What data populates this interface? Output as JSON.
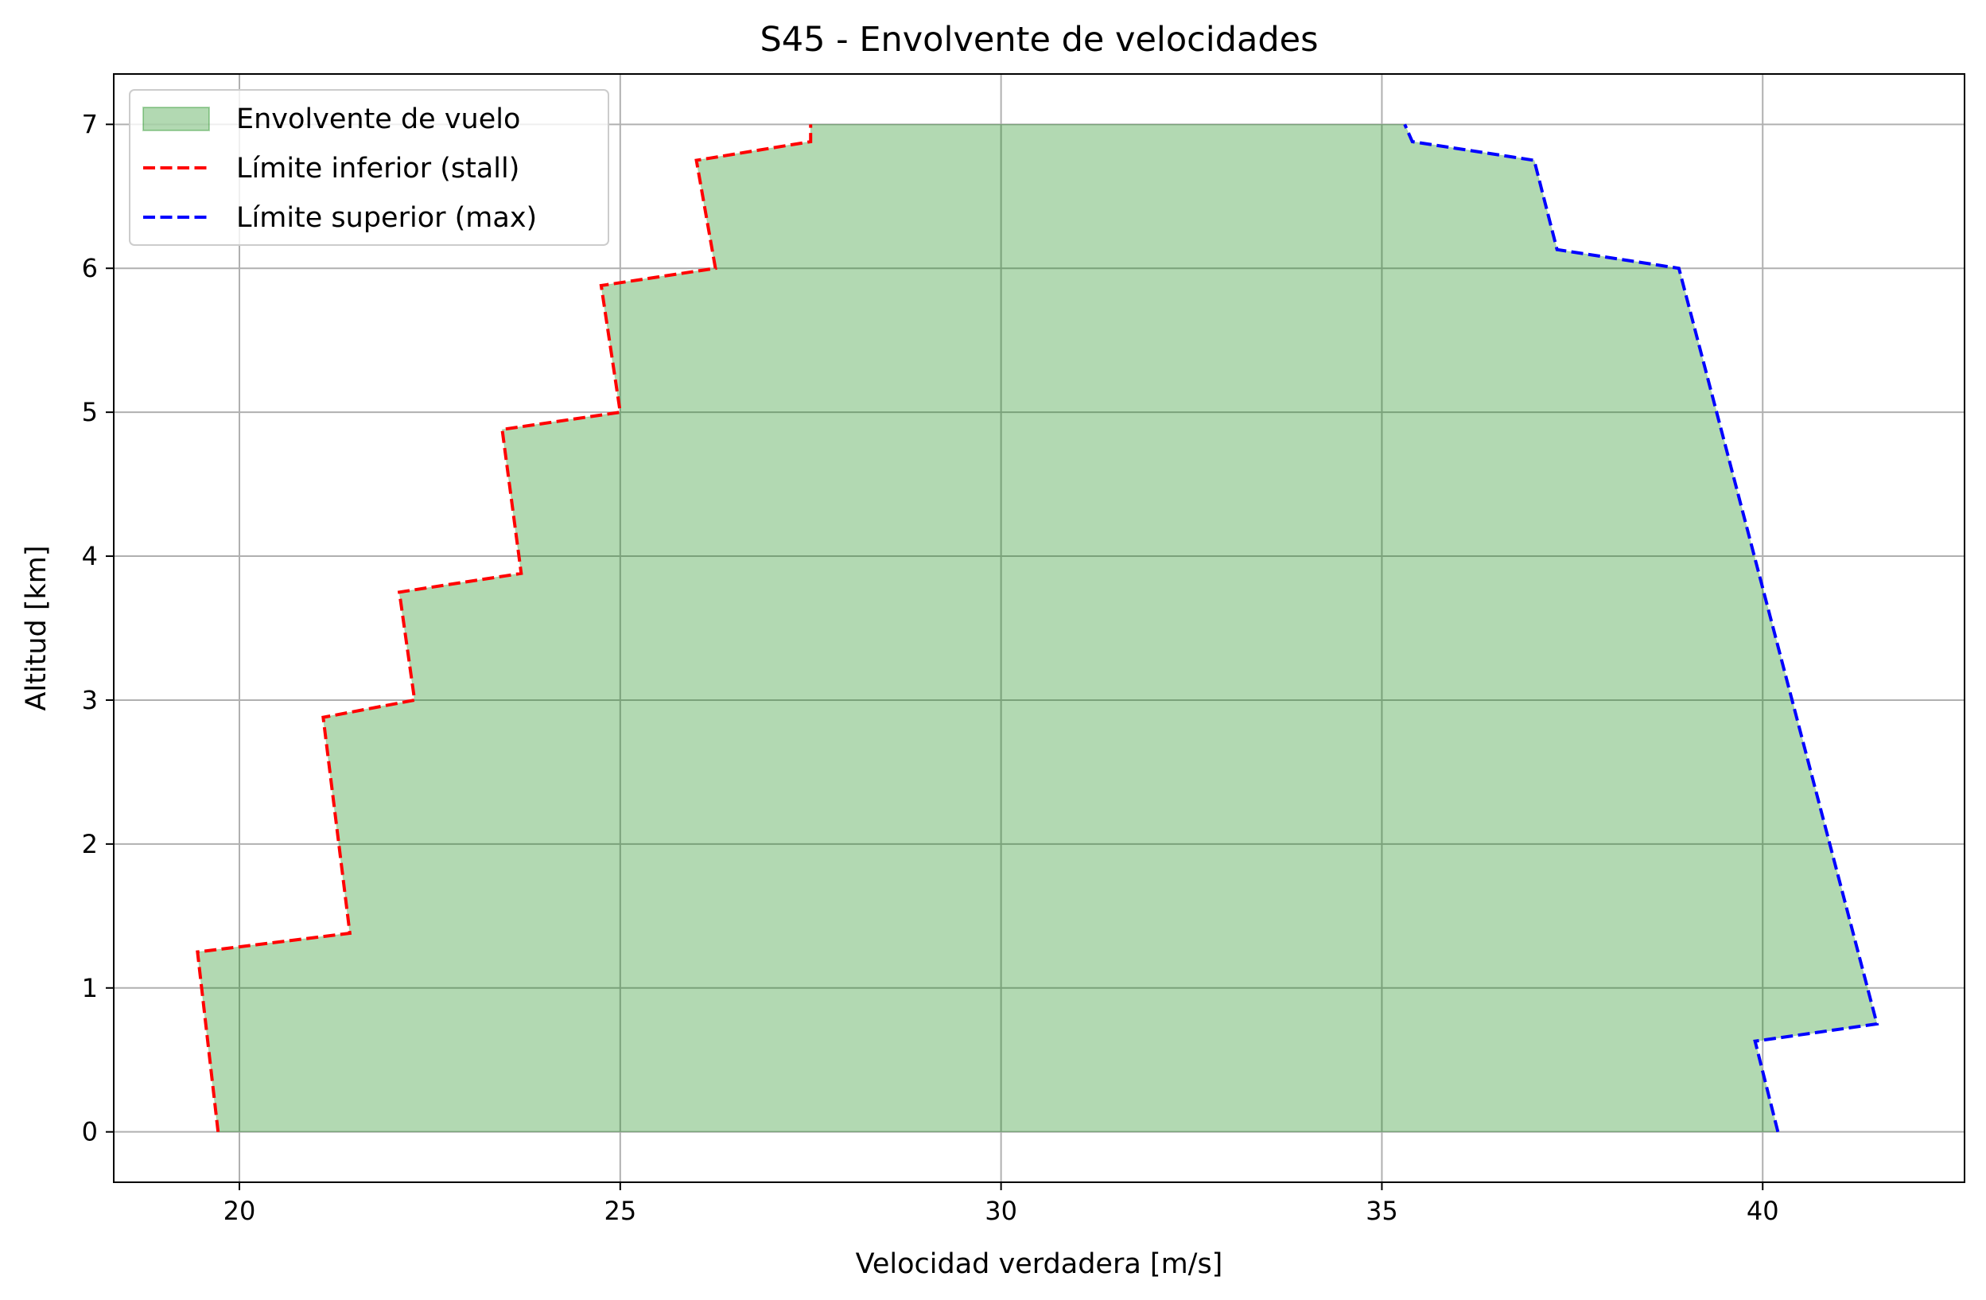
{
  "chart_data": {
    "type": "area",
    "title": "S45 - Envolvente de velocidades",
    "xlabel": "Velocidad verdadera [m/s]",
    "ylabel": "Altitud [km]",
    "xlim": [
      18.35,
      42.65
    ],
    "ylim": [
      -0.35,
      7.35
    ],
    "xticks": [
      20,
      25,
      30,
      35,
      40
    ],
    "yticks": [
      0,
      1,
      2,
      3,
      4,
      5,
      6,
      7
    ],
    "grid": true,
    "legend_position": "top-left",
    "legend": [
      {
        "label": "Envolvente de vuelo",
        "kind": "patch"
      },
      {
        "label": "Límite inferior (stall)",
        "kind": "dashed-line"
      },
      {
        "label": "Límite superior (max)",
        "kind": "dashed-line"
      }
    ],
    "series": [
      {
        "name": "Límite inferior (stall)",
        "color": "#ff0000",
        "style": "dashed",
        "points": [
          [
            19.72,
            0.0
          ],
          [
            19.45,
            1.25
          ],
          [
            21.45,
            1.38
          ],
          [
            21.1,
            2.88
          ],
          [
            22.3,
            3.0
          ],
          [
            22.1,
            3.75
          ],
          [
            23.7,
            3.88
          ],
          [
            23.45,
            4.88
          ],
          [
            25.0,
            5.0
          ],
          [
            24.75,
            5.88
          ],
          [
            26.25,
            6.0
          ],
          [
            26.0,
            6.75
          ],
          [
            27.5,
            6.88
          ],
          [
            27.5,
            7.0
          ]
        ]
      },
      {
        "name": "Límite superior (max)",
        "color": "#0000ff",
        "style": "dashed",
        "points": [
          [
            40.2,
            0.0
          ],
          [
            39.9,
            0.63
          ],
          [
            41.5,
            0.75
          ],
          [
            38.9,
            6.0
          ],
          [
            37.3,
            6.13
          ],
          [
            37.0,
            6.75
          ],
          [
            35.4,
            6.88
          ],
          [
            35.3,
            7.0
          ]
        ]
      }
    ],
    "fill": {
      "name": "Envolvente de vuelo",
      "color": "#008000",
      "opacity": 0.3,
      "between": [
        "Límite inferior (stall)",
        "Límite superior (max)"
      ]
    }
  }
}
